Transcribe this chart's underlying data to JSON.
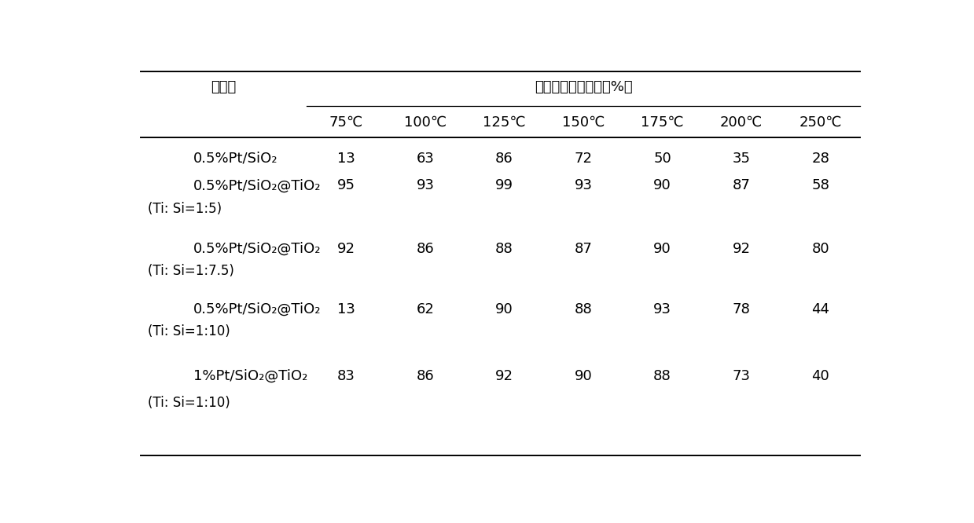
{
  "col_header_1": "催化剂",
  "col_header_2": "氮氧化物的转化率（%）",
  "temp_labels": [
    "75℃",
    "100℃",
    "125℃",
    "150℃",
    "175℃",
    "200℃",
    "250℃"
  ],
  "rows": [
    {
      "catalyst_name": "0.5%Pt/SiO₂",
      "catalyst_sub": "",
      "values": [
        13,
        63,
        86,
        72,
        50,
        35,
        28
      ]
    },
    {
      "catalyst_name": "0.5%Pt/SiO₂@TiO₂",
      "catalyst_sub": "(Ti: Si=1:5)",
      "values": [
        95,
        93,
        99,
        93,
        90,
        87,
        58
      ]
    },
    {
      "catalyst_name": "0.5%Pt/SiO₂@TiO₂",
      "catalyst_sub": "(Ti: Si=1:7.5)",
      "values": [
        92,
        86,
        88,
        87,
        90,
        92,
        80
      ]
    },
    {
      "catalyst_name": "0.5%Pt/SiO₂@TiO₂",
      "catalyst_sub": "(Ti: Si=1:10)",
      "values": [
        13,
        62,
        90,
        88,
        93,
        78,
        44
      ]
    },
    {
      "catalyst_name": "1%Pt/SiO₂@TiO₂",
      "catalyst_sub": "(Ti: Si=1:10)",
      "values": [
        83,
        86,
        92,
        90,
        88,
        73,
        40
      ]
    }
  ],
  "bg_color": "#ffffff",
  "text_color": "#000000",
  "line_color": "#000000",
  "font_size_header": 13,
  "font_size_cell": 13,
  "font_size_sub": 12
}
